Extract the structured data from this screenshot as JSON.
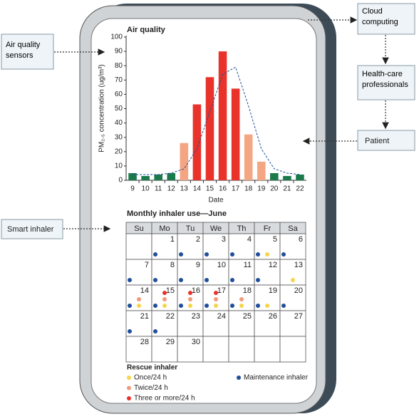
{
  "boxes": {
    "sensors": "Air quality sensors",
    "inhaler": "Smart inhaler",
    "cloud": "Cloud computing",
    "professionals": "Health-care professionals",
    "patient": "Patient"
  },
  "chart_data": {
    "type": "bar",
    "title": "Air quality",
    "xlabel": "Date",
    "ylabel": "PM₂.₅ concentration (ug/m³)",
    "categories": [
      "9",
      "10",
      "11",
      "12",
      "13",
      "14",
      "15",
      "16",
      "17",
      "18",
      "19",
      "20",
      "21",
      "22"
    ],
    "values": [
      5,
      3,
      4,
      5,
      26,
      53,
      72,
      90,
      64,
      32,
      13,
      5,
      3,
      4
    ],
    "colors": [
      "#1b7a4b",
      "#1b7a4b",
      "#1b7a4b",
      "#1b7a4b",
      "#f4a582",
      "#e8322a",
      "#e8322a",
      "#e8322a",
      "#e8322a",
      "#f4a582",
      "#f4a582",
      "#1b7a4b",
      "#1b7a4b",
      "#1b7a4b"
    ],
    "line": {
      "color": "#1f4e9c",
      "values": [
        4,
        4,
        4,
        5,
        8,
        22,
        48,
        74,
        79,
        52,
        22,
        8,
        5,
        4
      ]
    },
    "ylim": [
      0,
      100
    ],
    "yticks": [
      0,
      10,
      20,
      30,
      40,
      50,
      60,
      70,
      80,
      90,
      100
    ]
  },
  "calendar": {
    "title": "Monthly inhaler use—June",
    "weekdays": [
      "Su",
      "Mo",
      "Tu",
      "We",
      "Th",
      "Fr",
      "Sa"
    ],
    "days": [
      null,
      1,
      2,
      3,
      4,
      5,
      6,
      7,
      8,
      9,
      10,
      11,
      12,
      13,
      14,
      15,
      16,
      17,
      18,
      19,
      20,
      21,
      22,
      23,
      24,
      25,
      26,
      27,
      28,
      29,
      30
    ],
    "maintenance": [
      null,
      1,
      1,
      1,
      1,
      1,
      1,
      1,
      1,
      1,
      1,
      1,
      1,
      0,
      1,
      1,
      1,
      1,
      1,
      1,
      1,
      1,
      1,
      0,
      0,
      0,
      0,
      0,
      0,
      0,
      0
    ],
    "rescue": [
      null,
      0,
      0,
      0,
      0,
      1,
      0,
      0,
      0,
      0,
      0,
      0,
      0,
      1,
      2,
      3,
      3,
      3,
      2,
      1,
      0,
      0,
      0,
      0,
      0,
      0,
      0,
      0,
      0,
      0,
      0
    ]
  },
  "legend": {
    "title": "Rescue inhaler",
    "once": "Once/24 h",
    "twice": "Twice/24 h",
    "three": "Three or more/24 h",
    "maintenance": "Maintenance inhaler",
    "rescue_colors": [
      "#f7d54a",
      "#f19a78",
      "#e8322a"
    ],
    "maintenance_color": "#1f4e9c"
  }
}
